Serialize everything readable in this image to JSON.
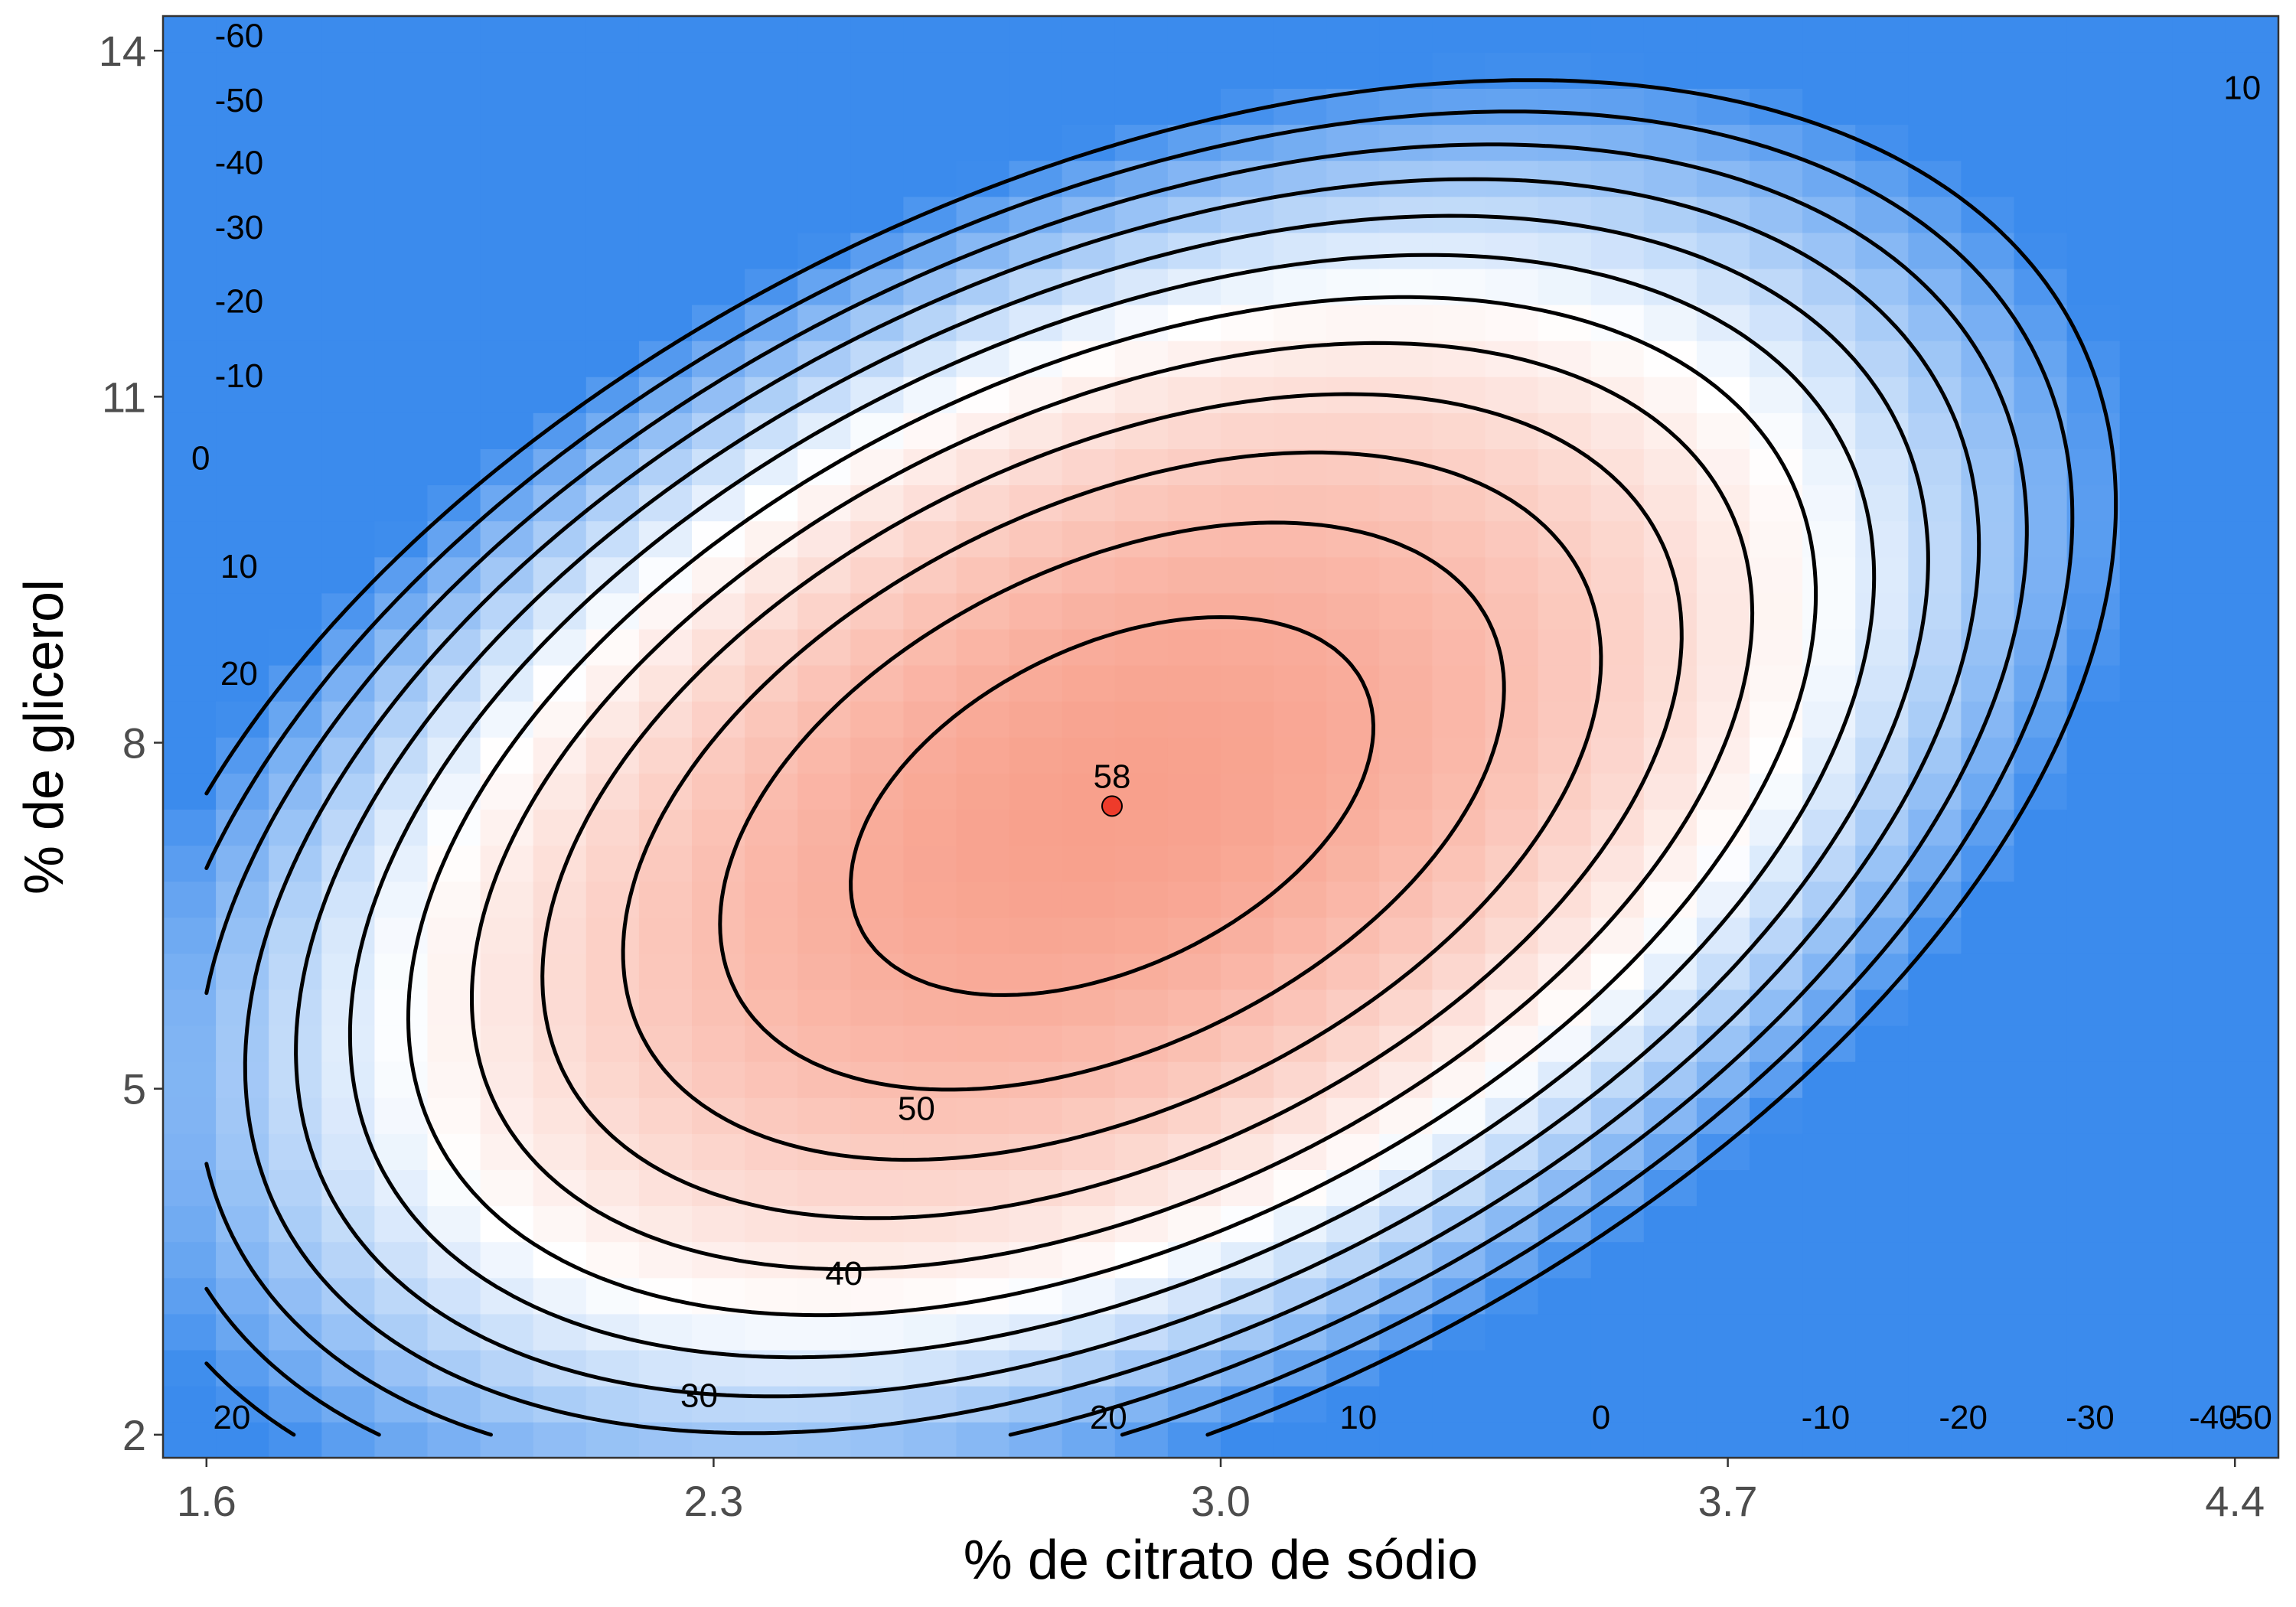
{
  "chart_data": {
    "type": "contour",
    "xlabel": "% de citrato de sódio",
    "ylabel": "% de glicerol",
    "xlim": [
      1.54,
      4.46
    ],
    "ylim": [
      1.8,
      14.3
    ],
    "x_ticks": [
      1.6,
      2.3,
      3.0,
      3.7,
      4.4
    ],
    "x_tick_labels": [
      "1.6",
      "2.3",
      "3.0",
      "3.7",
      "4.4"
    ],
    "y_ticks": [
      2,
      5,
      8,
      11,
      14
    ],
    "y_tick_labels": [
      "2",
      "5",
      "8",
      "11",
      "14"
    ],
    "grid": false,
    "fill_colors": {
      "high": "#f8a08c",
      "mid": "#ffffff",
      "low": "#3b8bed"
    },
    "fill_range": [
      -65,
      58
    ],
    "model": {
      "description_of_surface": "quadratic response surface",
      "center_x": 2.85,
      "center_y": 7.45,
      "z_max": 58,
      "a": 74.3,
      "b": 3.6,
      "c": -13.6
    },
    "contour_levels": [
      -60,
      -50,
      -40,
      -30,
      -20,
      -10,
      0,
      10,
      20,
      30,
      40,
      50
    ],
    "contour_labels": [
      {
        "text": "-60",
        "x": 1.645,
        "y": 14.13
      },
      {
        "text": "-50",
        "x": 1.645,
        "y": 13.57
      },
      {
        "text": "-40",
        "x": 1.645,
        "y": 13.03
      },
      {
        "text": "-30",
        "x": 1.645,
        "y": 12.47
      },
      {
        "text": "-20",
        "x": 1.645,
        "y": 11.83
      },
      {
        "text": "-10",
        "x": 1.645,
        "y": 11.18
      },
      {
        "text": "0",
        "x": 1.592,
        "y": 10.47
      },
      {
        "text": "10",
        "x": 1.645,
        "y": 9.53
      },
      {
        "text": "20",
        "x": 1.645,
        "y": 8.6
      },
      {
        "text": "10",
        "x": 4.41,
        "y": 13.68
      },
      {
        "text": "50",
        "x": 2.58,
        "y": 4.83
      },
      {
        "text": "40",
        "x": 2.48,
        "y": 3.4
      },
      {
        "text": "30",
        "x": 2.28,
        "y": 2.34
      },
      {
        "text": "20",
        "x": 1.635,
        "y": 2.15
      },
      {
        "text": "20",
        "x": 2.845,
        "y": 2.15
      },
      {
        "text": "10",
        "x": 3.19,
        "y": 2.15
      },
      {
        "text": "0",
        "x": 3.525,
        "y": 2.15
      },
      {
        "text": "-10",
        "x": 3.835,
        "y": 2.15
      },
      {
        "text": "-20",
        "x": 4.025,
        "y": 2.15
      },
      {
        "text": "-30",
        "x": 4.2,
        "y": 2.15
      },
      {
        "text": "-40",
        "x": 4.37,
        "y": 2.15
      },
      {
        "text": "-50",
        "x": 4.49,
        "y": 2.15
      }
    ],
    "optimum": {
      "x": 2.85,
      "y": 7.45,
      "label": "58",
      "color": "#ee3b2b"
    }
  }
}
